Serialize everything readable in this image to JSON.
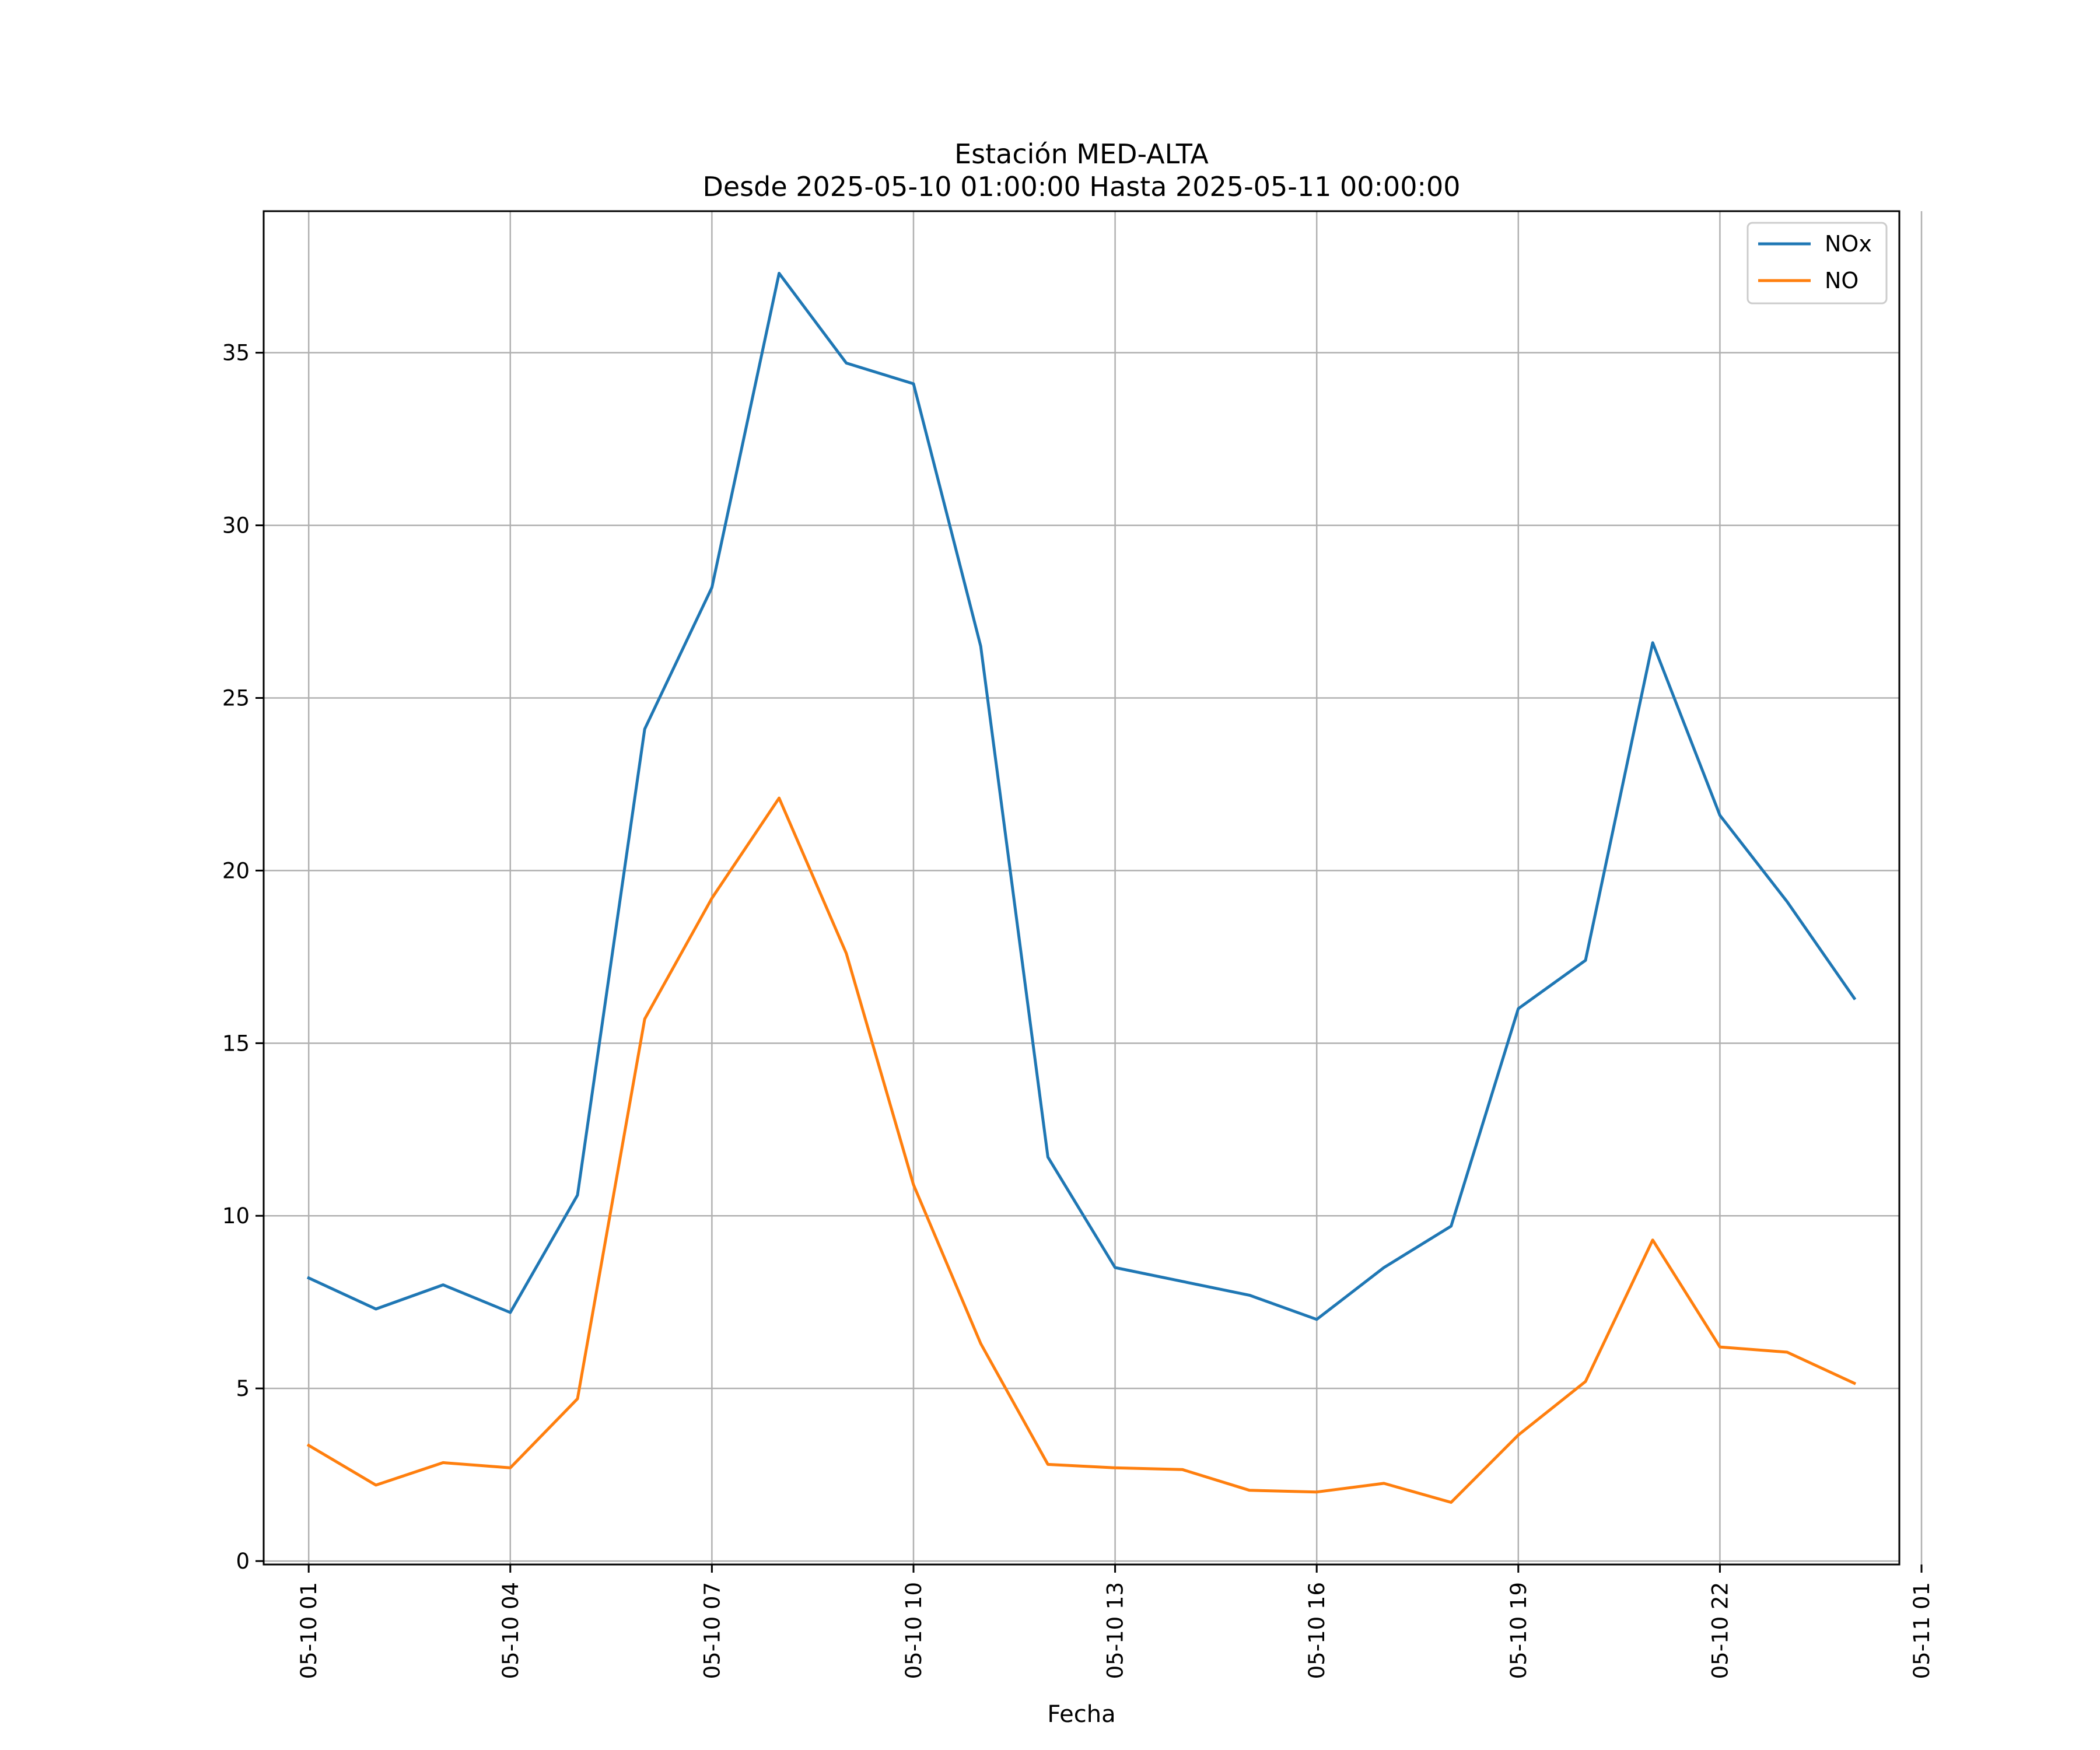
{
  "chart_data": {
    "type": "line",
    "title": "Estación MED-ALTA",
    "subtitle": "Desde 2025-05-10 01:00:00 Hasta 2025-05-11 00:00:00",
    "xlabel": "Fecha",
    "ylabel": "",
    "x": [
      "05-10 01",
      "05-10 02",
      "05-10 03",
      "05-10 04",
      "05-10 05",
      "05-10 06",
      "05-10 07",
      "05-10 08",
      "05-10 09",
      "05-10 10",
      "05-10 11",
      "05-10 12",
      "05-10 13",
      "05-10 14",
      "05-10 15",
      "05-10 16",
      "05-10 17",
      "05-10 18",
      "05-10 19",
      "05-10 20",
      "05-10 21",
      "05-10 22",
      "05-10 23",
      "05-11 00"
    ],
    "x_ticks": [
      "05-10 01",
      "05-10 04",
      "05-10 07",
      "05-10 10",
      "05-10 13",
      "05-10 16",
      "05-10 19",
      "05-10 22",
      "05-11 01"
    ],
    "y_ticks": [
      0,
      5,
      10,
      15,
      20,
      25,
      30,
      35
    ],
    "ylim": [
      -0.1,
      39.1
    ],
    "xlim": [
      "05-10 00",
      "05-11 01"
    ],
    "grid": true,
    "legend_position": "top-right",
    "series": [
      {
        "name": "NOx",
        "color": "#1f77b4",
        "values": [
          8.2,
          7.3,
          8.0,
          7.2,
          10.6,
          24.1,
          28.2,
          37.3,
          34.7,
          34.1,
          26.5,
          11.7,
          8.5,
          8.1,
          7.7,
          7.0,
          8.5,
          9.7,
          16.0,
          17.4,
          26.6,
          21.6,
          19.1,
          16.3
        ]
      },
      {
        "name": "NO",
        "color": "#ff7f0e",
        "values": [
          3.35,
          2.2,
          2.85,
          2.7,
          4.7,
          15.7,
          19.2,
          22.1,
          17.6,
          10.9,
          6.3,
          2.8,
          2.7,
          2.65,
          2.05,
          2.0,
          2.25,
          1.7,
          3.65,
          5.2,
          9.3,
          6.2,
          6.05,
          5.15
        ]
      }
    ]
  }
}
